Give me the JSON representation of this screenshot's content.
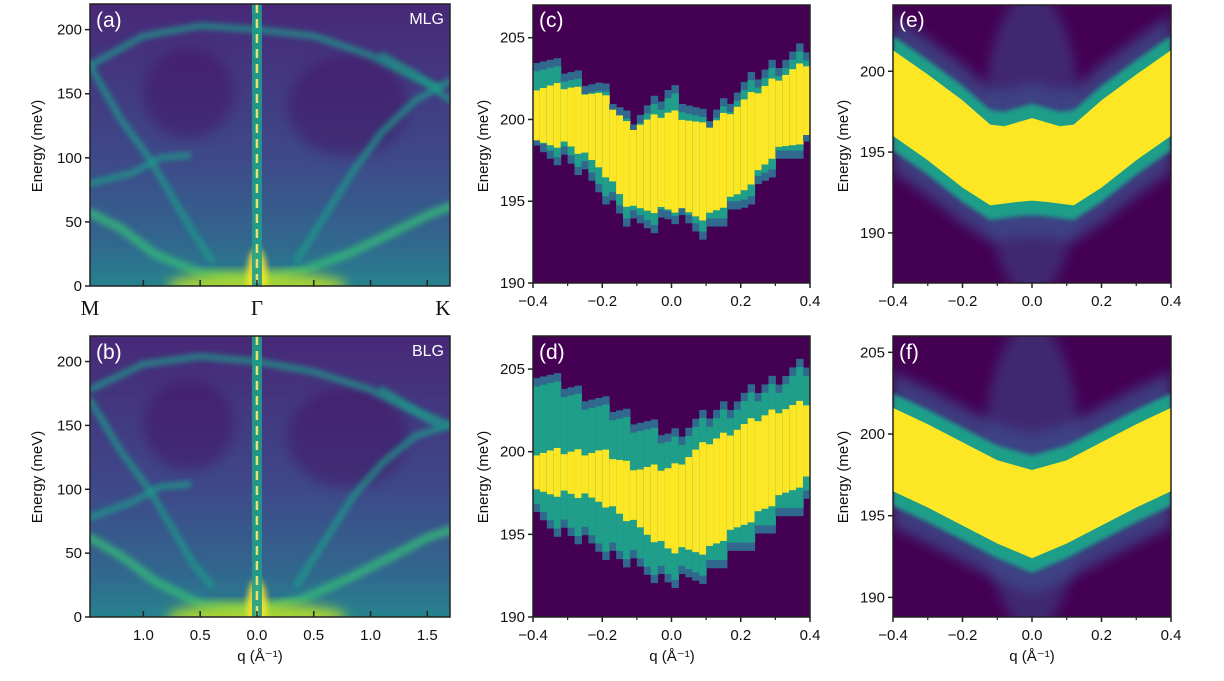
{
  "colors": {
    "viridis": [
      "#440154",
      "#482878",
      "#3e4989",
      "#31688e",
      "#26828e",
      "#1f9e89",
      "#35b779",
      "#6ece58",
      "#b5de2b",
      "#fde725"
    ],
    "dashed_line": "#e8e070",
    "frame": "#222222",
    "text_dark": "#111111",
    "text_light": "#ffffff"
  },
  "chart_data": [
    {
      "id": "a",
      "type": "heatmap",
      "panel_label": "(a)",
      "sample": "MLG",
      "title": "",
      "ylabel": "Energy (meV)",
      "xlabel": "",
      "xlim": [
        -1.47,
        1.7
      ],
      "ylim": [
        0,
        220
      ],
      "yticks": [
        0,
        50,
        100,
        150,
        200
      ],
      "ytick_labels": [
        "0",
        "50",
        "100",
        "150",
        "200"
      ],
      "xticks": [
        -1.47,
        -1.0,
        -0.5,
        0.0,
        0.5,
        1.0,
        1.5,
        1.7
      ],
      "xtick_labels": [],
      "symmetry_points": [
        {
          "label": "M",
          "q": -1.47
        },
        {
          "label": "Γ",
          "q": 0.0
        },
        {
          "label": "K",
          "q": 1.7
        }
      ],
      "gamma_dashed_line_q": 0.0,
      "bands": [
        {
          "name": "top-arc",
          "points": [
            [
              -1.47,
              172
            ],
            [
              -1.0,
              195
            ],
            [
              -0.5,
              203
            ],
            [
              0.0,
              200
            ],
            [
              0.5,
              195
            ],
            [
              1.0,
              180
            ],
            [
              1.4,
              162
            ],
            [
              1.6,
              155
            ]
          ]
        },
        {
          "name": "left-upper-branch",
          "points": [
            [
              -1.47,
              172
            ],
            [
              -1.2,
              130
            ],
            [
              -0.95,
              100
            ],
            [
              -0.75,
              70
            ],
            [
              -0.55,
              40
            ],
            [
              -0.4,
              20
            ]
          ]
        },
        {
          "name": "left-mid-branch",
          "points": [
            [
              -1.47,
              80
            ],
            [
              -1.1,
              88
            ],
            [
              -0.85,
              100
            ],
            [
              -0.6,
              102
            ]
          ]
        },
        {
          "name": "left-lower-branch",
          "points": [
            [
              -1.47,
              57
            ],
            [
              -1.2,
              45
            ],
            [
              -0.9,
              25
            ],
            [
              -0.5,
              10
            ],
            [
              0.0,
              5
            ]
          ]
        },
        {
          "name": "right-upper-branch",
          "points": [
            [
              0.35,
              20
            ],
            [
              0.6,
              55
            ],
            [
              0.85,
              90
            ],
            [
              1.1,
              120
            ],
            [
              1.4,
              145
            ],
            [
              1.7,
              160
            ]
          ]
        },
        {
          "name": "right-lower-branch",
          "points": [
            [
              0.0,
              5
            ],
            [
              0.4,
              12
            ],
            [
              0.8,
              25
            ],
            [
              1.2,
              42
            ],
            [
              1.5,
              55
            ],
            [
              1.7,
              62
            ]
          ]
        },
        {
          "name": "right-top-to-K",
          "points": [
            [
              1.1,
              180
            ],
            [
              1.4,
              165
            ],
            [
              1.7,
              145
            ]
          ]
        }
      ]
    },
    {
      "id": "b",
      "type": "heatmap",
      "panel_label": "(b)",
      "sample": "BLG",
      "title": "",
      "ylabel": "Energy (meV)",
      "xlabel": "q (Å⁻¹)",
      "xlim": [
        -1.47,
        1.7
      ],
      "ylim": [
        0,
        220
      ],
      "yticks": [
        0,
        50,
        100,
        150,
        200
      ],
      "ytick_labels": [
        "0",
        "50",
        "100",
        "150",
        "200"
      ],
      "xticks": [
        -1.0,
        -0.5,
        0.0,
        0.5,
        1.0,
        1.5
      ],
      "xtick_labels": [
        "1.0",
        "0.5",
        "0.0",
        "0.5",
        "1.0",
        "1.5"
      ],
      "gamma_dashed_line_q": 0.0,
      "bands": [
        {
          "name": "top-arc",
          "points": [
            [
              -1.47,
              178
            ],
            [
              -1.0,
              198
            ],
            [
              -0.5,
              204
            ],
            [
              0.0,
              200
            ],
            [
              0.5,
              192
            ],
            [
              1.0,
              178
            ],
            [
              1.4,
              160
            ],
            [
              1.6,
              150
            ]
          ]
        },
        {
          "name": "left-upper-branch",
          "points": [
            [
              -1.47,
              170
            ],
            [
              -1.2,
              130
            ],
            [
              -0.95,
              100
            ],
            [
              -0.75,
              70
            ],
            [
              -0.55,
              40
            ],
            [
              -0.4,
              25
            ]
          ]
        },
        {
          "name": "left-mid-branch",
          "points": [
            [
              -1.47,
              78
            ],
            [
              -1.1,
              90
            ],
            [
              -0.85,
              102
            ],
            [
              -0.6,
              104
            ]
          ]
        },
        {
          "name": "left-lower-branch",
          "points": [
            [
              -1.47,
              62
            ],
            [
              -1.2,
              48
            ],
            [
              -0.9,
              28
            ],
            [
              -0.5,
              10
            ],
            [
              0.0,
              5
            ]
          ]
        },
        {
          "name": "right-upper-branch",
          "points": [
            [
              0.35,
              25
            ],
            [
              0.6,
              60
            ],
            [
              0.85,
              95
            ],
            [
              1.1,
              120
            ],
            [
              1.4,
              142
            ],
            [
              1.7,
              150
            ]
          ]
        },
        {
          "name": "right-lower-branch",
          "points": [
            [
              0.0,
              5
            ],
            [
              0.4,
              14
            ],
            [
              0.8,
              30
            ],
            [
              1.2,
              48
            ],
            [
              1.5,
              62
            ],
            [
              1.7,
              68
            ]
          ]
        },
        {
          "name": "right-top-to-K",
          "points": [
            [
              1.1,
              178
            ],
            [
              1.4,
              162
            ],
            [
              1.7,
              150
            ]
          ]
        }
      ]
    },
    {
      "id": "c",
      "type": "heatmap",
      "panel_label": "(c)",
      "title": "",
      "ylabel": "Energy (meV)",
      "xlabel": "",
      "xlim": [
        -0.4,
        0.4
      ],
      "ylim": [
        190,
        207
      ],
      "yticks": [
        190,
        195,
        200,
        205
      ],
      "ytick_labels": [
        "190",
        "195",
        "200",
        "205"
      ],
      "xticks": [
        -0.4,
        -0.2,
        0.0,
        0.2,
        0.4
      ],
      "xtick_labels": [
        "−0.4",
        "−0.2",
        "0.0",
        "0.2",
        "0.4"
      ],
      "pixelated": true,
      "band_upper": [
        [
          -0.4,
          204
        ],
        [
          -0.3,
          203
        ],
        [
          -0.2,
          202
        ],
        [
          -0.12,
          200
        ],
        [
          -0.05,
          201
        ],
        [
          0.0,
          202
        ],
        [
          0.05,
          201
        ],
        [
          0.1,
          200
        ],
        [
          0.2,
          202
        ],
        [
          0.3,
          203.5
        ],
        [
          0.4,
          204.5
        ]
      ],
      "band_lower": [
        [
          -0.4,
          198
        ],
        [
          -0.3,
          197.5
        ],
        [
          -0.2,
          195.5
        ],
        [
          -0.12,
          193.5
        ],
        [
          -0.05,
          193.5
        ],
        [
          0.0,
          194
        ],
        [
          0.05,
          193.5
        ],
        [
          0.1,
          193
        ],
        [
          0.2,
          194.5
        ],
        [
          0.3,
          197
        ],
        [
          0.4,
          198.5
        ]
      ],
      "core_upper": [
        [
          -0.3,
          202
        ],
        [
          -0.2,
          201.5
        ],
        [
          -0.12,
          199.5
        ],
        [
          0.0,
          200.5
        ],
        [
          0.1,
          199.5
        ],
        [
          0.2,
          201
        ],
        [
          0.3,
          202.5
        ],
        [
          0.4,
          203.5
        ]
      ],
      "core_lower": [
        [
          -0.3,
          198.5
        ],
        [
          -0.2,
          197
        ],
        [
          -0.12,
          194.5
        ],
        [
          0.0,
          194.5
        ],
        [
          0.1,
          194
        ],
        [
          0.2,
          195.5
        ],
        [
          0.3,
          198
        ],
        [
          0.4,
          199
        ]
      ]
    },
    {
      "id": "d",
      "type": "heatmap",
      "panel_label": "(d)",
      "title": "",
      "ylabel": "Energy (meV)",
      "xlabel": "q (Å⁻¹)",
      "xlim": [
        -0.4,
        0.4
      ],
      "ylim": [
        190,
        207
      ],
      "yticks": [
        190,
        195,
        200,
        205
      ],
      "ytick_labels": [
        "190",
        "195",
        "200",
        "205"
      ],
      "xticks": [
        -0.4,
        -0.2,
        0.0,
        0.2,
        0.4
      ],
      "xtick_labels": [
        "−0.4",
        "−0.2",
        "0.0",
        "0.2",
        "0.4"
      ],
      "pixelated": true,
      "band_upper": [
        [
          -0.4,
          205
        ],
        [
          -0.3,
          204
        ],
        [
          -0.2,
          203
        ],
        [
          -0.1,
          202
        ],
        [
          0.0,
          201
        ],
        [
          0.1,
          202.2
        ],
        [
          0.2,
          203.3
        ],
        [
          0.3,
          204.4
        ],
        [
          0.4,
          205.5
        ]
      ],
      "band_lower": [
        [
          -0.4,
          196
        ],
        [
          -0.3,
          195
        ],
        [
          -0.2,
          194
        ],
        [
          -0.1,
          193
        ],
        [
          0.0,
          192
        ],
        [
          0.1,
          192.5
        ],
        [
          0.2,
          194
        ],
        [
          0.3,
          195.5
        ],
        [
          0.4,
          197
        ]
      ],
      "core_upper": [
        [
          -0.3,
          200
        ],
        [
          -0.2,
          200
        ],
        [
          -0.1,
          199
        ],
        [
          0.0,
          199
        ],
        [
          0.1,
          200.5
        ],
        [
          0.2,
          201.5
        ],
        [
          0.3,
          202.5
        ],
        [
          0.4,
          203
        ]
      ],
      "core_lower": [
        [
          -0.3,
          197.5
        ],
        [
          -0.2,
          197
        ],
        [
          -0.1,
          195.5
        ],
        [
          0.0,
          194
        ],
        [
          0.1,
          194
        ],
        [
          0.2,
          195.5
        ],
        [
          0.3,
          197
        ],
        [
          0.4,
          198.5
        ]
      ]
    },
    {
      "id": "e",
      "type": "heatmap",
      "panel_label": "(e)",
      "title": "",
      "ylabel": "Energy (meV)",
      "xlabel": "",
      "xlim": [
        -0.4,
        0.4
      ],
      "ylim": [
        186.9,
        204.1
      ],
      "yticks": [
        190,
        195,
        200
      ],
      "ytick_labels": [
        "190",
        "195",
        "200"
      ],
      "xticks": [
        -0.4,
        -0.2,
        0.0,
        0.2,
        0.4
      ],
      "xtick_labels": [
        "−0.4",
        "−0.2",
        "0.0",
        "0.2",
        "0.4"
      ],
      "pixelated": false,
      "band_upper": [
        [
          -0.4,
          201.3
        ],
        [
          -0.3,
          199.8
        ],
        [
          -0.2,
          198.2
        ],
        [
          -0.12,
          196.7
        ],
        [
          -0.08,
          196.6
        ],
        [
          0.0,
          197.1
        ],
        [
          0.08,
          196.6
        ],
        [
          0.12,
          196.7
        ],
        [
          0.2,
          198.2
        ],
        [
          0.3,
          199.8
        ],
        [
          0.4,
          201.3
        ]
      ],
      "band_lower": [
        [
          -0.4,
          196.0
        ],
        [
          -0.3,
          194.5
        ],
        [
          -0.2,
          192.8
        ],
        [
          -0.12,
          191.7
        ],
        [
          -0.05,
          191.9
        ],
        [
          0.0,
          192.0
        ],
        [
          0.05,
          191.9
        ],
        [
          0.12,
          191.7
        ],
        [
          0.2,
          192.8
        ],
        [
          0.3,
          194.5
        ],
        [
          0.4,
          196.0
        ]
      ]
    },
    {
      "id": "f",
      "type": "heatmap",
      "panel_label": "(f)",
      "title": "",
      "ylabel": "Energy (meV)",
      "xlabel": "q (Å⁻¹)",
      "xlim": [
        -0.4,
        0.4
      ],
      "ylim": [
        188.8,
        206.0
      ],
      "yticks": [
        190,
        195,
        200,
        205
      ],
      "ytick_labels": [
        "190",
        "195",
        "200",
        "205"
      ],
      "xticks": [
        -0.4,
        -0.2,
        0.0,
        0.2,
        0.4
      ],
      "xtick_labels": [
        "−0.4",
        "−0.2",
        "0.0",
        "0.2",
        "0.4"
      ],
      "pixelated": false,
      "band_upper": [
        [
          -0.4,
          201.6
        ],
        [
          -0.3,
          200.6
        ],
        [
          -0.2,
          199.5
        ],
        [
          -0.1,
          198.4
        ],
        [
          0.0,
          197.8
        ],
        [
          0.1,
          198.4
        ],
        [
          0.2,
          199.5
        ],
        [
          0.3,
          200.6
        ],
        [
          0.4,
          201.6
        ]
      ],
      "band_lower": [
        [
          -0.4,
          196.5
        ],
        [
          -0.3,
          195.5
        ],
        [
          -0.2,
          194.4
        ],
        [
          -0.1,
          193.3
        ],
        [
          0.0,
          192.4
        ],
        [
          0.1,
          193.3
        ],
        [
          0.2,
          194.4
        ],
        [
          0.3,
          195.5
        ],
        [
          0.4,
          196.5
        ]
      ]
    }
  ]
}
